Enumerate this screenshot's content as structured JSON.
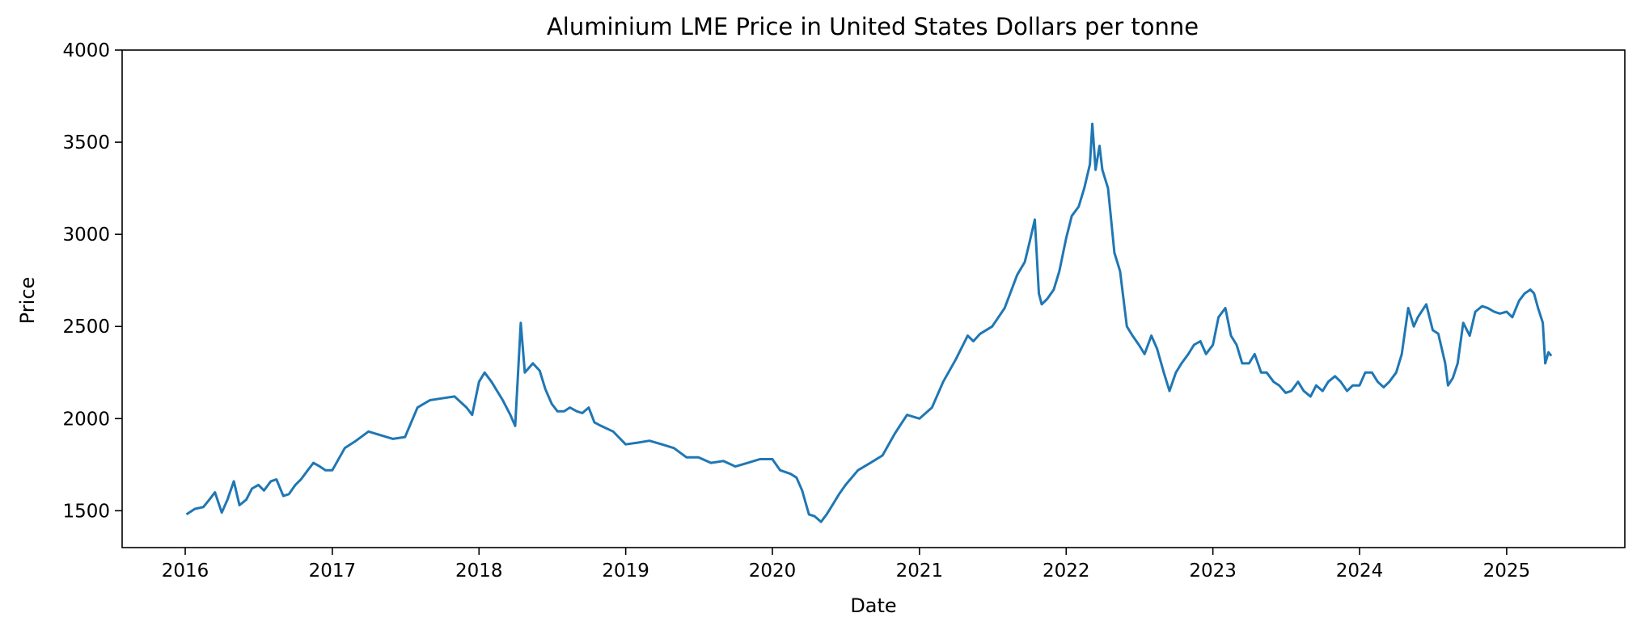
{
  "chart_data": {
    "type": "line",
    "title": "Aluminium LME Price in United States Dollars per tonne",
    "xlabel": "Date",
    "ylabel": "Price",
    "xlim": [
      "2015-07-28",
      "2025-10-22"
    ],
    "ylim": [
      1300,
      4000
    ],
    "xticks": [
      "2016",
      "2017",
      "2018",
      "2019",
      "2020",
      "2021",
      "2022",
      "2023",
      "2024",
      "2025"
    ],
    "yticks": [
      1500,
      2000,
      2500,
      3000,
      3500,
      4000
    ],
    "grid": false,
    "legend": "none",
    "line_color": "#1f77b4",
    "series": [
      {
        "x": [
          "2016-01-04",
          "2016-01-25",
          "2016-02-15",
          "2016-03-01",
          "2016-03-15",
          "2016-04-01",
          "2016-04-15",
          "2016-05-01",
          "2016-05-15",
          "2016-06-01",
          "2016-06-15",
          "2016-07-01",
          "2016-07-15",
          "2016-08-01",
          "2016-08-15",
          "2016-09-01",
          "2016-09-15",
          "2016-10-01",
          "2016-10-15",
          "2016-11-01",
          "2016-11-15",
          "2016-12-01",
          "2016-12-15",
          "2017-01-01",
          "2017-02-01",
          "2017-03-01",
          "2017-04-01",
          "2017-05-01",
          "2017-06-01",
          "2017-07-01",
          "2017-08-01",
          "2017-09-01",
          "2017-10-01",
          "2017-11-01",
          "2017-12-01",
          "2017-12-15",
          "2018-01-01",
          "2018-01-15",
          "2018-02-01",
          "2018-03-01",
          "2018-03-20",
          "2018-04-01",
          "2018-04-15",
          "2018-04-25",
          "2018-05-15",
          "2018-06-01",
          "2018-06-15",
          "2018-07-01",
          "2018-07-15",
          "2018-08-01",
          "2018-08-15",
          "2018-09-01",
          "2018-09-15",
          "2018-10-01",
          "2018-10-15",
          "2018-11-01",
          "2018-12-01",
          "2019-01-01",
          "2019-02-01",
          "2019-03-01",
          "2019-04-01",
          "2019-05-01",
          "2019-06-01",
          "2019-07-01",
          "2019-08-01",
          "2019-09-01",
          "2019-10-01",
          "2019-11-01",
          "2019-12-01",
          "2020-01-01",
          "2020-01-20",
          "2020-02-15",
          "2020-03-01",
          "2020-03-15",
          "2020-04-01",
          "2020-04-15",
          "2020-05-01",
          "2020-05-15",
          "2020-06-01",
          "2020-06-15",
          "2020-07-01",
          "2020-08-01",
          "2020-09-01",
          "2020-10-01",
          "2020-11-01",
          "2020-12-01",
          "2021-01-01",
          "2021-02-01",
          "2021-03-01",
          "2021-04-01",
          "2021-05-01",
          "2021-05-15",
          "2021-06-01",
          "2021-07-01",
          "2021-08-01",
          "2021-09-01",
          "2021-09-20",
          "2021-10-01",
          "2021-10-15",
          "2021-10-25",
          "2021-11-01",
          "2021-11-15",
          "2021-12-01",
          "2021-12-15",
          "2022-01-01",
          "2022-01-15",
          "2022-02-01",
          "2022-02-15",
          "2022-03-01",
          "2022-03-07",
          "2022-03-15",
          "2022-03-25",
          "2022-04-01",
          "2022-04-15",
          "2022-05-01",
          "2022-05-15",
          "2022-06-01",
          "2022-06-15",
          "2022-07-01",
          "2022-07-15",
          "2022-08-01",
          "2022-08-15",
          "2022-09-01",
          "2022-09-15",
          "2022-10-01",
          "2022-10-15",
          "2022-11-01",
          "2022-11-15",
          "2022-12-01",
          "2022-12-15",
          "2023-01-01",
          "2023-01-15",
          "2023-02-01",
          "2023-02-15",
          "2023-03-01",
          "2023-03-15",
          "2023-04-01",
          "2023-04-15",
          "2023-05-01",
          "2023-05-15",
          "2023-06-01",
          "2023-06-15",
          "2023-07-01",
          "2023-07-15",
          "2023-08-01",
          "2023-08-15",
          "2023-09-01",
          "2023-09-15",
          "2023-10-01",
          "2023-10-15",
          "2023-11-01",
          "2023-11-15",
          "2023-12-01",
          "2023-12-15",
          "2024-01-01",
          "2024-01-15",
          "2024-02-01",
          "2024-02-15",
          "2024-03-01",
          "2024-03-15",
          "2024-04-01",
          "2024-04-15",
          "2024-05-01",
          "2024-05-15",
          "2024-05-25",
          "2024-06-15",
          "2024-07-01",
          "2024-07-15",
          "2024-08-01",
          "2024-08-08",
          "2024-08-20",
          "2024-09-01",
          "2024-09-15",
          "2024-10-01",
          "2024-10-15",
          "2024-11-01",
          "2024-11-15",
          "2024-12-01",
          "2024-12-15",
          "2025-01-01",
          "2025-01-15",
          "2025-02-01",
          "2025-02-15",
          "2025-03-01",
          "2025-03-10",
          "2025-03-20",
          "2025-04-01",
          "2025-04-07",
          "2025-04-15",
          "2025-04-22"
        ],
        "y": [
          1480,
          1510,
          1520,
          1560,
          1600,
          1490,
          1560,
          1660,
          1530,
          1560,
          1620,
          1640,
          1610,
          1660,
          1670,
          1580,
          1590,
          1640,
          1670,
          1720,
          1760,
          1740,
          1720,
          1720,
          1840,
          1880,
          1930,
          1910,
          1890,
          1900,
          2060,
          2100,
          2110,
          2120,
          2060,
          2020,
          2200,
          2250,
          2200,
          2100,
          2020,
          1960,
          2520,
          2250,
          2300,
          2260,
          2160,
          2080,
          2040,
          2040,
          2060,
          2040,
          2030,
          2060,
          1980,
          1960,
          1930,
          1860,
          1870,
          1880,
          1860,
          1840,
          1790,
          1790,
          1760,
          1770,
          1740,
          1760,
          1780,
          1780,
          1720,
          1700,
          1680,
          1610,
          1480,
          1470,
          1440,
          1480,
          1540,
          1590,
          1640,
          1720,
          1760,
          1800,
          1920,
          2020,
          2000,
          2060,
          2200,
          2320,
          2450,
          2420,
          2460,
          2500,
          2600,
          2780,
          2850,
          2950,
          3080,
          2680,
          2620,
          2650,
          2700,
          2800,
          2980,
          3100,
          3150,
          3250,
          3380,
          3600,
          3350,
          3480,
          3350,
          3250,
          2900,
          2800,
          2500,
          2450,
          2400,
          2350,
          2450,
          2380,
          2250,
          2150,
          2250,
          2300,
          2350,
          2400,
          2420,
          2350,
          2400,
          2550,
          2600,
          2450,
          2400,
          2300,
          2300,
          2350,
          2250,
          2250,
          2200,
          2180,
          2140,
          2150,
          2200,
          2150,
          2120,
          2180,
          2150,
          2200,
          2230,
          2200,
          2150,
          2180,
          2180,
          2250,
          2250,
          2200,
          2170,
          2200,
          2250,
          2350,
          2600,
          2500,
          2550,
          2620,
          2480,
          2460,
          2300,
          2180,
          2220,
          2300,
          2520,
          2450,
          2580,
          2610,
          2600,
          2580,
          2570,
          2580,
          2550,
          2640,
          2680,
          2700,
          2680,
          2600,
          2520,
          2300,
          2360,
          2340
        ]
      }
    ]
  }
}
